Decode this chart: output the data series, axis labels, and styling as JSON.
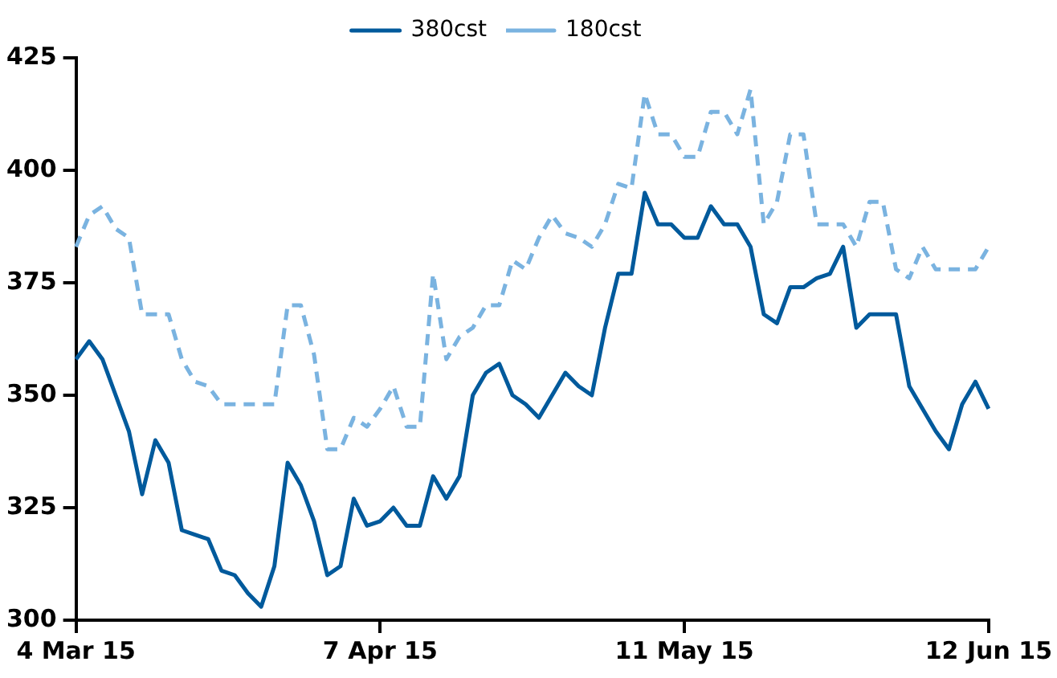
{
  "chart_data": {
    "type": "line",
    "categories": [
      "4 Mar 15",
      null,
      null,
      null,
      null,
      null,
      null,
      null,
      null,
      null,
      null,
      null,
      null,
      null,
      null,
      null,
      null,
      null,
      null,
      null,
      null,
      null,
      null,
      "7 Apr 15",
      null,
      null,
      null,
      null,
      null,
      null,
      null,
      null,
      null,
      null,
      null,
      null,
      null,
      null,
      null,
      null,
      null,
      null,
      null,
      null,
      null,
      null,
      "11 May 15",
      null,
      null,
      null,
      null,
      null,
      null,
      null,
      null,
      null,
      null,
      null,
      null,
      null,
      null,
      null,
      null,
      null,
      null,
      null,
      null,
      null,
      null,
      "12 Jun 15"
    ],
    "series": [
      {
        "name": "380cst",
        "color": "#005a9c",
        "line_style": "solid",
        "values": [
          358,
          362,
          358,
          350,
          342,
          328,
          340,
          335,
          320,
          319,
          318,
          311,
          310,
          306,
          303,
          312,
          335,
          330,
          322,
          310,
          312,
          327,
          321,
          322,
          325,
          321,
          321,
          332,
          327,
          332,
          350,
          355,
          357,
          350,
          348,
          345,
          350,
          355,
          352,
          350,
          365,
          377,
          377,
          395,
          388,
          388,
          385,
          385,
          392,
          388,
          388,
          383,
          368,
          366,
          374,
          374,
          376,
          377,
          383,
          365,
          368,
          368,
          368,
          352,
          347,
          342,
          338,
          348,
          353,
          347
        ]
      },
      {
        "name": "180cst",
        "color": "#7ab3e0",
        "line_style": "dashed",
        "values": [
          383,
          390,
          392,
          387,
          385,
          368,
          368,
          368,
          358,
          353,
          352,
          348,
          348,
          348,
          348,
          348,
          370,
          370,
          359,
          338,
          338,
          345,
          343,
          347,
          352,
          343,
          343,
          377,
          358,
          363,
          365,
          370,
          370,
          380,
          378,
          385,
          390,
          386,
          385,
          383,
          388,
          397,
          396,
          417,
          408,
          408,
          403,
          403,
          413,
          413,
          408,
          418,
          388,
          393,
          408,
          408,
          388,
          388,
          388,
          383,
          393,
          393,
          378,
          376,
          383,
          378,
          378,
          378,
          378,
          383
        ]
      }
    ],
    "ylim": [
      300,
      425
    ],
    "yticks": [
      300,
      325,
      350,
      375,
      400,
      425
    ],
    "grid": false,
    "legend": "top",
    "marker": "none"
  }
}
